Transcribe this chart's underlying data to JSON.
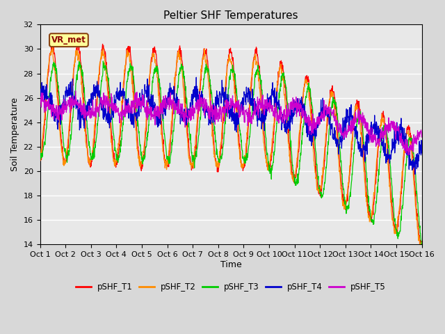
{
  "title": "Peltier SHF Temperatures",
  "xlabel": "Time",
  "ylabel": "Soil Temperature",
  "xlim": [
    0,
    15
  ],
  "ylim": [
    14,
    32
  ],
  "yticks": [
    14,
    16,
    18,
    20,
    22,
    24,
    26,
    28,
    30,
    32
  ],
  "xtick_labels": [
    "Oct 1",
    "Oct 2",
    "Oct 3",
    "Oct 4",
    "Oct 5",
    "Oct 6",
    "Oct 7",
    "Oct 8",
    "Oct 9",
    "Oct 10",
    "Oct 11",
    "Oct 12",
    "Oct 13",
    "Oct 14",
    "Oct 15",
    "Oct 16"
  ],
  "annotation_text": "VR_met",
  "annotation_box_color": "#ffff99",
  "annotation_text_color": "#8B0000",
  "annotation_edge_color": "#8B4513",
  "colors": {
    "pSHF_T1": "#ff0000",
    "pSHF_T2": "#ff8c00",
    "pSHF_T3": "#00cc00",
    "pSHF_T4": "#0000cc",
    "pSHF_T5": "#cc00cc"
  },
  "bg_color": "#d8d8d8",
  "plot_bg": "#e8e8e8",
  "grid_color": "#ffffff",
  "title_fontsize": 11,
  "axis_label_fontsize": 9,
  "tick_fontsize": 8,
  "legend_fontsize": 8.5,
  "linewidth": 0.9
}
